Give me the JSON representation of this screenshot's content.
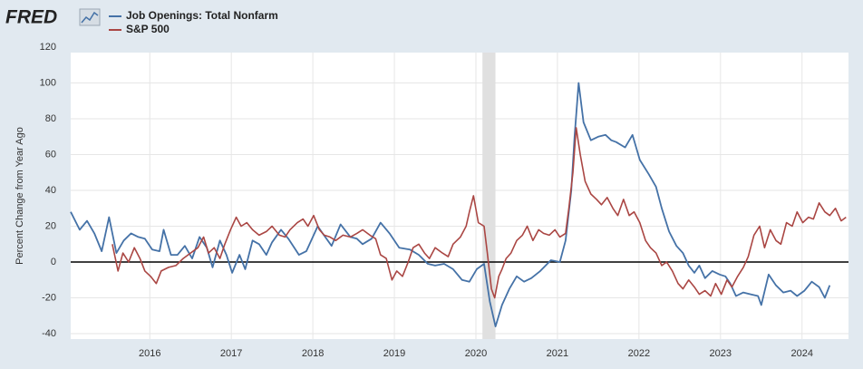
{
  "chart_data": {
    "type": "line",
    "logo": "FRED",
    "y_label": "Percent Change from Year Ago",
    "xlim": [
      2015.03,
      2024.57
    ],
    "xticks": [
      2016,
      2017,
      2018,
      2019,
      2020,
      2021,
      2022,
      2023,
      2024
    ],
    "ylim": [
      -40,
      120
    ],
    "yticks": [
      -40,
      -20,
      0,
      20,
      40,
      60,
      80,
      100,
      120
    ],
    "grid": true,
    "zero_line": true,
    "recessions": [
      [
        2020.08,
        2020.24
      ]
    ],
    "series": [
      {
        "name": "Job Openings: Total Nonfarm",
        "color": "#4572a7",
        "x": [
          2015.03,
          2015.14,
          2015.23,
          2015.32,
          2015.41,
          2015.5,
          2015.59,
          2015.68,
          2015.77,
          2015.86,
          2015.94,
          2016.03,
          2016.12,
          2016.17,
          2016.26,
          2016.34,
          2016.43,
          2016.52,
          2016.61,
          2016.7,
          2016.77,
          2016.86,
          2016.94,
          2017.01,
          2017.1,
          2017.17,
          2017.26,
          2017.34,
          2017.43,
          2017.5,
          2017.61,
          2017.7,
          2017.83,
          2017.92,
          2018.06,
          2018.12,
          2018.23,
          2018.34,
          2018.46,
          2018.54,
          2018.61,
          2018.72,
          2018.83,
          2018.94,
          2019.06,
          2019.19,
          2019.3,
          2019.41,
          2019.5,
          2019.61,
          2019.72,
          2019.83,
          2019.92,
          2020.01,
          2020.1,
          2020.17,
          2020.24,
          2020.32,
          2020.41,
          2020.5,
          2020.59,
          2020.68,
          2020.79,
          2020.92,
          2021.03,
          2021.1,
          2021.17,
          2021.21,
          2021.26,
          2021.32,
          2021.41,
          2021.5,
          2021.59,
          2021.66,
          2021.72,
          2021.83,
          2021.92,
          2022.01,
          2022.12,
          2022.21,
          2022.28,
          2022.37,
          2022.46,
          2022.54,
          2022.61,
          2022.68,
          2022.74,
          2022.81,
          2022.9,
          2022.99,
          2023.06,
          2023.12,
          2023.19,
          2023.28,
          2023.37,
          2023.46,
          2023.5,
          2023.59,
          2023.68,
          2023.77,
          2023.86,
          2023.94,
          2024.03,
          2024.12,
          2024.21,
          2024.28,
          2024.34
        ],
        "values": [
          28,
          18,
          23,
          16,
          6,
          25,
          5,
          12,
          16,
          14,
          13,
          7,
          6,
          18,
          4,
          4,
          9,
          2,
          14,
          8,
          -3,
          12,
          4,
          -6,
          4,
          -4,
          12,
          10,
          4,
          11,
          18,
          13,
          4,
          6,
          20,
          16,
          9,
          21,
          14,
          13,
          10,
          13,
          22,
          16,
          8,
          7,
          4,
          -1,
          -2,
          -1,
          -4,
          -10,
          -11,
          -4,
          -1,
          -22,
          -36,
          -24,
          -15,
          -8,
          -11,
          -9,
          -5,
          1,
          0,
          12,
          40,
          70,
          100,
          78,
          68,
          70,
          71,
          68,
          67,
          64,
          71,
          57,
          49,
          42,
          30,
          17,
          9,
          5,
          -2,
          -6,
          -2,
          -9,
          -5,
          -7,
          -8,
          -12,
          -19,
          -17,
          -18,
          -19,
          -24,
          -7,
          -13,
          -17,
          -16,
          -19,
          -16,
          -11,
          -14,
          -20,
          -13
        ]
      },
      {
        "name": "S&P 500",
        "color": "#aa4643",
        "x": [
          2015.54,
          2015.61,
          2015.67,
          2015.74,
          2015.81,
          2015.88,
          2015.94,
          2016.01,
          2016.08,
          2016.14,
          2016.23,
          2016.32,
          2016.41,
          2016.5,
          2016.59,
          2016.66,
          2016.72,
          2016.79,
          2016.86,
          2016.92,
          2016.99,
          2017.06,
          2017.12,
          2017.19,
          2017.26,
          2017.34,
          2017.43,
          2017.5,
          2017.59,
          2017.66,
          2017.72,
          2017.81,
          2017.88,
          2017.94,
          2018.01,
          2018.08,
          2018.14,
          2018.21,
          2018.28,
          2018.37,
          2018.46,
          2018.54,
          2018.61,
          2018.7,
          2018.77,
          2018.83,
          2018.9,
          2018.97,
          2019.03,
          2019.1,
          2019.17,
          2019.23,
          2019.3,
          2019.37,
          2019.43,
          2019.5,
          2019.59,
          2019.66,
          2019.72,
          2019.81,
          2019.88,
          2019.92,
          2019.97,
          2020.03,
          2020.1,
          2020.14,
          2020.19,
          2020.23,
          2020.28,
          2020.32,
          2020.37,
          2020.43,
          2020.5,
          2020.57,
          2020.63,
          2020.7,
          2020.77,
          2020.83,
          2020.9,
          2020.97,
          2021.03,
          2021.1,
          2021.14,
          2021.19,
          2021.23,
          2021.28,
          2021.34,
          2021.41,
          2021.48,
          2021.54,
          2021.61,
          2021.68,
          2021.74,
          2021.81,
          2021.88,
          2021.94,
          2022.01,
          2022.08,
          2022.14,
          2022.21,
          2022.28,
          2022.34,
          2022.41,
          2022.48,
          2022.54,
          2022.61,
          2022.68,
          2022.74,
          2022.81,
          2022.88,
          2022.94,
          2023.01,
          2023.08,
          2023.14,
          2023.21,
          2023.28,
          2023.34,
          2023.41,
          2023.48,
          2023.54,
          2023.61,
          2023.68,
          2023.74,
          2023.81,
          2023.88,
          2023.94,
          2024.01,
          2024.08,
          2024.14,
          2024.21,
          2024.28,
          2024.34,
          2024.41,
          2024.48,
          2024.54
        ],
        "values": [
          10,
          -5,
          5,
          0,
          8,
          2,
          -5,
          -8,
          -12,
          -5,
          -3,
          -2,
          2,
          5,
          8,
          14,
          5,
          8,
          2,
          10,
          18,
          25,
          20,
          22,
          18,
          15,
          17,
          20,
          15,
          14,
          18,
          22,
          24,
          20,
          26,
          18,
          15,
          14,
          12,
          15,
          14,
          16,
          18,
          15,
          13,
          4,
          2,
          -10,
          -5,
          -8,
          0,
          8,
          10,
          5,
          2,
          8,
          5,
          3,
          10,
          14,
          20,
          28,
          37,
          22,
          20,
          5,
          -15,
          -20,
          -8,
          -4,
          2,
          5,
          12,
          15,
          20,
          12,
          18,
          16,
          15,
          18,
          14,
          16,
          30,
          50,
          75,
          60,
          45,
          38,
          35,
          32,
          36,
          30,
          26,
          35,
          26,
          28,
          22,
          12,
          8,
          5,
          -2,
          0,
          -5,
          -12,
          -15,
          -10,
          -14,
          -18,
          -16,
          -19,
          -12,
          -18,
          -10,
          -14,
          -8,
          -3,
          3,
          15,
          20,
          8,
          18,
          12,
          10,
          22,
          20,
          28,
          22,
          25,
          24,
          33,
          28,
          26,
          30,
          23,
          25
        ]
      }
    ]
  }
}
